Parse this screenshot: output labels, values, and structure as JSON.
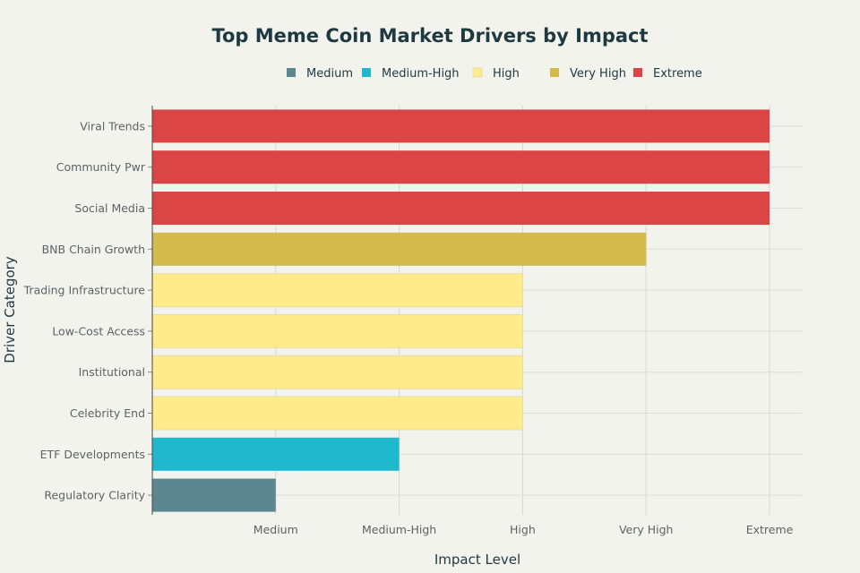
{
  "chart_data": {
    "type": "bar",
    "orientation": "horizontal",
    "title": "Top Meme Coin Market Drivers by Impact",
    "xlabel": "Impact Level",
    "ylabel": "Driver Category",
    "x_tick_labels": [
      "Medium",
      "Medium-High",
      "High",
      "Very High",
      "Extreme"
    ],
    "categories": [
      "Viral Trends",
      "Community Pwr",
      "Social Media",
      "BNB Chain Growth",
      "Trading Infrastructure",
      "Low-Cost Access",
      "Institutional",
      "Celebrity End",
      "ETF Developments",
      "Regulatory Clarity"
    ],
    "values": [
      "Extreme",
      "Extreme",
      "Extreme",
      "Very High",
      "High",
      "High",
      "High",
      "High",
      "Medium-High",
      "Medium"
    ],
    "legend": {
      "placement": "top",
      "entries": [
        {
          "name": "Medium",
          "color": "#5d878f"
        },
        {
          "name": "Medium-High",
          "color": "#1fb8cd"
        },
        {
          "name": "High",
          "color": "#ffeb8a"
        },
        {
          "name": "Very High",
          "color": "#d2ba4c"
        },
        {
          "name": "Extreme",
          "color": "#db4545"
        }
      ]
    },
    "grid": true
  }
}
